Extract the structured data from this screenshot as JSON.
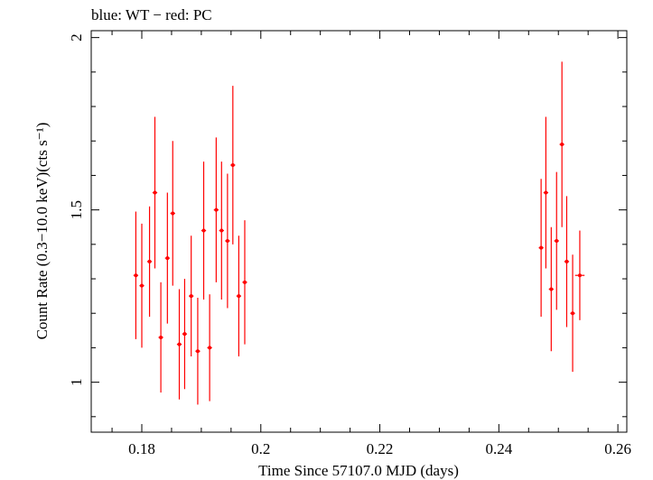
{
  "chart_data": {
    "type": "scatter",
    "title": "blue: WT − red: PC",
    "xlabel": "Time Since 57107.0 MJD (days)",
    "ylabel": "Count Rate (0.3−10.0 keV)(cts s⁻¹)",
    "xlim": [
      0.1715,
      0.2615
    ],
    "ylim": [
      0.855,
      2.02
    ],
    "x_ticks": [
      0.18,
      0.2,
      0.22,
      0.24,
      0.26
    ],
    "x_tick_labels": [
      "0.18",
      "0.2",
      "0.22",
      "0.24",
      "0.26"
    ],
    "y_ticks": [
      1.0,
      1.5,
      2.0
    ],
    "y_tick_labels": [
      "1",
      "1.5",
      "2"
    ],
    "grid": false,
    "series": [
      {
        "color": "#ff0000",
        "points": [
          {
            "x": 0.179,
            "y": 1.31,
            "yerr": 0.185,
            "xerr": 0.0004
          },
          {
            "x": 0.18,
            "y": 1.28,
            "yerr": 0.18,
            "xerr": 0.0004
          },
          {
            "x": 0.1813,
            "y": 1.35,
            "yerr": 0.16,
            "xerr": 0.0004
          },
          {
            "x": 0.1822,
            "y": 1.55,
            "yerr": 0.22,
            "xerr": 0.0004
          },
          {
            "x": 0.1832,
            "y": 1.13,
            "yerr": 0.16,
            "xerr": 0.0004
          },
          {
            "x": 0.1843,
            "y": 1.36,
            "yerr": 0.19,
            "xerr": 0.0004
          },
          {
            "x": 0.1852,
            "y": 1.49,
            "yerr": 0.21,
            "xerr": 0.0004
          },
          {
            "x": 0.1863,
            "y": 1.11,
            "yerr": 0.16,
            "xerr": 0.0004
          },
          {
            "x": 0.1872,
            "y": 1.14,
            "yerr": 0.16,
            "xerr": 0.0004
          },
          {
            "x": 0.1883,
            "y": 1.25,
            "yerr": 0.175,
            "xerr": 0.0004
          },
          {
            "x": 0.1894,
            "y": 1.09,
            "yerr": 0.155,
            "xerr": 0.0004
          },
          {
            "x": 0.1904,
            "y": 1.44,
            "yerr": 0.2,
            "xerr": 0.0004
          },
          {
            "x": 0.1914,
            "y": 1.1,
            "yerr": 0.155,
            "xerr": 0.0004
          },
          {
            "x": 0.1925,
            "y": 1.5,
            "yerr": 0.21,
            "xerr": 0.0004
          },
          {
            "x": 0.1934,
            "y": 1.44,
            "yerr": 0.2,
            "xerr": 0.0004
          },
          {
            "x": 0.1944,
            "y": 1.41,
            "yerr": 0.195,
            "xerr": 0.0004
          },
          {
            "x": 0.1953,
            "y": 1.63,
            "yerr": 0.23,
            "xerr": 0.0004
          },
          {
            "x": 0.1963,
            "y": 1.25,
            "yerr": 0.175,
            "xerr": 0.0004
          },
          {
            "x": 0.1973,
            "y": 1.29,
            "yerr": 0.18,
            "xerr": 0.0004
          },
          {
            "x": 0.2471,
            "y": 1.39,
            "yerr": 0.2,
            "xerr": 0.0004
          },
          {
            "x": 0.2479,
            "y": 1.55,
            "yerr": 0.22,
            "xerr": 0.0004
          },
          {
            "x": 0.2488,
            "y": 1.27,
            "yerr": 0.18,
            "xerr": 0.0004
          },
          {
            "x": 0.2497,
            "y": 1.41,
            "yerr": 0.2,
            "xerr": 0.0004
          },
          {
            "x": 0.2506,
            "y": 1.69,
            "yerr": 0.24,
            "xerr": 0.0004
          },
          {
            "x": 0.2514,
            "y": 1.35,
            "yerr": 0.19,
            "xerr": 0.0004
          },
          {
            "x": 0.2524,
            "y": 1.2,
            "yerr": 0.17,
            "xerr": 0.0004
          },
          {
            "x": 0.2536,
            "y": 1.31,
            "yerr": 0.13,
            "xerr": 0.0008
          }
        ]
      }
    ]
  }
}
